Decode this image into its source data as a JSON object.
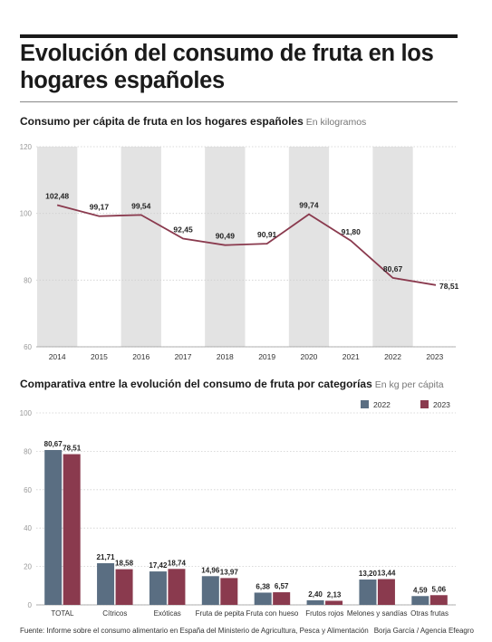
{
  "header": {
    "title_line1": "Evolución del consumo de fruta en los",
    "title_line2": "hogares españoles"
  },
  "chart1_header": {
    "subtitle": "Consumo per cápita de fruta en los hogares españoles",
    "unit": "En kilogramos"
  },
  "chart2_header": {
    "subtitle": "Comparativa entre la evolución del consumo de fruta por categorías",
    "unit": "En kg per cápita"
  },
  "footer": {
    "source": "Fuente: Informe sobre el consumo alimentario en España del Ministerio de Agricultura, Pesca y Alimentación",
    "credit": "Borja García / Agencia Efeagro"
  },
  "colors": {
    "line": "#8a3a4e",
    "band": "#e3e3e3",
    "bar_2022": "#5a6e82",
    "bar_2023": "#8a3a4e"
  },
  "chart_data": [
    {
      "type": "line",
      "x": [
        "2014",
        "2015",
        "2016",
        "2017",
        "2018",
        "2019",
        "2020",
        "2021",
        "2022",
        "2023"
      ],
      "values": [
        102.48,
        99.17,
        99.54,
        92.45,
        90.49,
        90.91,
        99.74,
        91.8,
        80.67,
        78.51
      ],
      "labels": [
        "102,48",
        "99,17",
        "99,54",
        "92,45",
        "90,49",
        "90,91",
        "99,74",
        "91,80",
        "80,67",
        "78,51"
      ],
      "yticks": [
        "60",
        "80",
        "100",
        "120"
      ],
      "ylim": [
        60,
        120
      ],
      "grid": true
    },
    {
      "type": "bar",
      "categories": [
        "TOTAL",
        "Cítricos",
        "Exóticas",
        "Fruta de pepita",
        "Fruta con hueso",
        "Frutos rojos",
        "Melones y sandías",
        "Otras frutas"
      ],
      "series": [
        {
          "name": "2022",
          "values": [
            80.67,
            21.71,
            17.42,
            14.96,
            6.38,
            2.4,
            13.2,
            4.59
          ],
          "labels": [
            "80,67",
            "21,71",
            "17,42",
            "14,96",
            "6,38",
            "2,40",
            "13,20",
            "4,59"
          ]
        },
        {
          "name": "2023",
          "values": [
            78.51,
            18.58,
            18.74,
            13.97,
            6.57,
            2.13,
            13.44,
            5.06
          ],
          "labels": [
            "78,51",
            "18,58",
            "18,74",
            "13,97",
            "6,57",
            "2,13",
            "13,44",
            "5,06"
          ]
        }
      ],
      "yticks": [
        "0",
        "20",
        "40",
        "60",
        "80",
        "100"
      ],
      "ylim": [
        0,
        100
      ],
      "legend": "top-right",
      "grid": true
    }
  ]
}
